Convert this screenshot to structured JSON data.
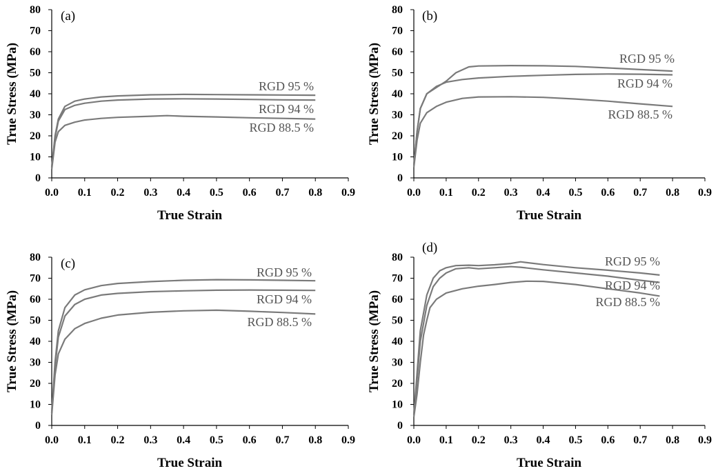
{
  "figure": {
    "panels": [
      "(a)",
      "(b)",
      "(c)",
      "(d)"
    ]
  },
  "style": {
    "line_color": "#7a7a7a",
    "axis_color": "#000000",
    "label_color": "#555555"
  },
  "chart_data": [
    {
      "type": "line",
      "panel": "(a)",
      "xlabel": "True Strain",
      "ylabel": "True Stress (MPa)",
      "xlim": [
        0,
        0.9
      ],
      "ylim": [
        0,
        80
      ],
      "xticks": [
        "0.0",
        "0.1",
        "0.2",
        "0.3",
        "0.4",
        "0.5",
        "0.6",
        "0.7",
        "0.8",
        "0.9"
      ],
      "yticks": [
        "0",
        "10",
        "20",
        "30",
        "40",
        "50",
        "60",
        "70",
        "80"
      ],
      "grid": false,
      "series": [
        {
          "name": "RGD 95 %",
          "x": [
            0,
            0.01,
            0.02,
            0.04,
            0.07,
            0.1,
            0.15,
            0.2,
            0.3,
            0.4,
            0.5,
            0.6,
            0.7,
            0.8
          ],
          "y": [
            5,
            20,
            28,
            34,
            36.5,
            37.5,
            38.5,
            39,
            39.5,
            39.7,
            39.6,
            39.5,
            39.4,
            39.3
          ]
        },
        {
          "name": "RGD 94 %",
          "x": [
            0,
            0.01,
            0.02,
            0.04,
            0.07,
            0.1,
            0.15,
            0.2,
            0.3,
            0.4,
            0.5,
            0.6,
            0.7,
            0.8
          ],
          "y": [
            5,
            19,
            27,
            32.5,
            34.5,
            35.5,
            36.5,
            37,
            37.5,
            37.6,
            37.5,
            37.3,
            37.1,
            37
          ]
        },
        {
          "name": "RGD 88.5 %",
          "x": [
            0,
            0.01,
            0.02,
            0.04,
            0.07,
            0.1,
            0.15,
            0.2,
            0.3,
            0.35,
            0.4,
            0.5,
            0.6,
            0.7,
            0.8
          ],
          "y": [
            4,
            17,
            22,
            25,
            26.5,
            27.5,
            28.3,
            28.8,
            29.3,
            29.6,
            29.3,
            29,
            28.6,
            28.3,
            28
          ]
        }
      ]
    },
    {
      "type": "line",
      "panel": "(b)",
      "xlabel": "True Strain",
      "ylabel": "True Stress (MPa)",
      "xlim": [
        0,
        0.9
      ],
      "ylim": [
        0,
        80
      ],
      "xticks": [
        "0.0",
        "0.1",
        "0.2",
        "0.3",
        "0.4",
        "0.5",
        "0.6",
        "0.7",
        "0.8",
        "0.9"
      ],
      "yticks": [
        "0",
        "10",
        "20",
        "30",
        "40",
        "50",
        "60",
        "70",
        "80"
      ],
      "grid": false,
      "series": [
        {
          "name": "RGD 95 %",
          "x": [
            0,
            0.01,
            0.02,
            0.04,
            0.07,
            0.1,
            0.13,
            0.17,
            0.2,
            0.3,
            0.4,
            0.5,
            0.6,
            0.7,
            0.8
          ],
          "y": [
            6,
            22,
            33,
            40,
            43,
            46,
            50,
            52.8,
            53.2,
            53.4,
            53.3,
            53,
            52.3,
            51.5,
            50.8
          ]
        },
        {
          "name": "RGD 94 %",
          "x": [
            0,
            0.01,
            0.02,
            0.04,
            0.07,
            0.1,
            0.15,
            0.2,
            0.3,
            0.4,
            0.5,
            0.6,
            0.7,
            0.8
          ],
          "y": [
            6,
            22,
            33,
            40,
            43.5,
            45.5,
            46.8,
            47.5,
            48.3,
            48.8,
            49.2,
            49.4,
            49.3,
            49
          ]
        },
        {
          "name": "RGD 88.5 %",
          "x": [
            0,
            0.01,
            0.02,
            0.04,
            0.07,
            0.1,
            0.15,
            0.2,
            0.3,
            0.4,
            0.5,
            0.6,
            0.7,
            0.8
          ],
          "y": [
            5,
            18,
            26,
            31,
            34,
            36,
            37.8,
            38.5,
            38.6,
            38.3,
            37.5,
            36.5,
            35.2,
            34
          ]
        }
      ]
    },
    {
      "type": "line",
      "panel": "(c)",
      "xlabel": "True Strain",
      "ylabel": "True Stress (MPa)",
      "xlim": [
        0,
        0.9
      ],
      "ylim": [
        0,
        80
      ],
      "xticks": [
        "0.0",
        "0.1",
        "0.2",
        "0.3",
        "0.4",
        "0.5",
        "0.6",
        "0.7",
        "0.8",
        "0.9"
      ],
      "yticks": [
        "0",
        "10",
        "20",
        "30",
        "40",
        "50",
        "60",
        "70",
        "80"
      ],
      "grid": false,
      "series": [
        {
          "name": "RGD 95 %",
          "x": [
            0,
            0.01,
            0.02,
            0.04,
            0.07,
            0.1,
            0.15,
            0.2,
            0.3,
            0.4,
            0.5,
            0.6,
            0.7,
            0.8
          ],
          "y": [
            6,
            30,
            45,
            56,
            62,
            64.5,
            66.5,
            67.5,
            68.4,
            69,
            69.3,
            69.2,
            69,
            68.8
          ]
        },
        {
          "name": "RGD 94 %",
          "x": [
            0,
            0.01,
            0.02,
            0.04,
            0.07,
            0.1,
            0.15,
            0.2,
            0.3,
            0.4,
            0.5,
            0.6,
            0.7,
            0.8
          ],
          "y": [
            6,
            28,
            42,
            52,
            57.5,
            60,
            62,
            62.8,
            63.6,
            64,
            64.3,
            64.4,
            64.3,
            64.2
          ]
        },
        {
          "name": "RGD 88.5 %",
          "x": [
            0,
            0.01,
            0.02,
            0.04,
            0.07,
            0.1,
            0.15,
            0.2,
            0.3,
            0.4,
            0.5,
            0.6,
            0.7,
            0.8
          ],
          "y": [
            5,
            24,
            34,
            41,
            46,
            48.5,
            51,
            52.5,
            53.8,
            54.5,
            54.8,
            54.3,
            53.7,
            53
          ]
        }
      ]
    },
    {
      "type": "line",
      "panel": "(d)",
      "xlabel": "True Strain",
      "ylabel": "True Stress (MPa)",
      "xlim": [
        0,
        0.9
      ],
      "ylim": [
        0,
        80
      ],
      "xticks": [
        "0.0",
        "0.1",
        "0.2",
        "0.3",
        "0.4",
        "0.5",
        "0.6",
        "0.7",
        "0.8",
        "0.9"
      ],
      "yticks": [
        "0",
        "10",
        "20",
        "30",
        "40",
        "50",
        "60",
        "70",
        "80"
      ],
      "grid": false,
      "series": [
        {
          "name": "RGD 95 %",
          "x": [
            0,
            0.01,
            0.02,
            0.04,
            0.06,
            0.08,
            0.1,
            0.13,
            0.17,
            0.2,
            0.25,
            0.3,
            0.33,
            0.4,
            0.5,
            0.6,
            0.7,
            0.76
          ],
          "y": [
            5,
            25,
            45,
            62,
            70,
            73.5,
            75,
            76,
            76.2,
            76,
            76.4,
            77,
            77.8,
            76.5,
            75,
            73.8,
            72.5,
            71.5
          ]
        },
        {
          "name": "RGD 94 %",
          "x": [
            0,
            0.01,
            0.02,
            0.04,
            0.06,
            0.08,
            0.1,
            0.13,
            0.17,
            0.2,
            0.25,
            0.3,
            0.33,
            0.4,
            0.5,
            0.6,
            0.7,
            0.76
          ],
          "y": [
            5,
            22,
            40,
            57,
            66,
            70,
            72.5,
            74.5,
            75,
            74.5,
            75,
            75.5,
            75.2,
            74,
            72.5,
            71,
            69,
            68
          ]
        },
        {
          "name": "RGD 88.5 %",
          "x": [
            0,
            0.01,
            0.02,
            0.03,
            0.04,
            0.05,
            0.07,
            0.1,
            0.15,
            0.2,
            0.25,
            0.3,
            0.35,
            0.4,
            0.5,
            0.6,
            0.7,
            0.76
          ],
          "y": [
            4,
            15,
            30,
            43,
            50,
            56,
            60,
            63,
            65,
            66.2,
            67,
            68,
            68.6,
            68.5,
            67,
            65,
            63,
            61.5
          ]
        }
      ]
    }
  ]
}
